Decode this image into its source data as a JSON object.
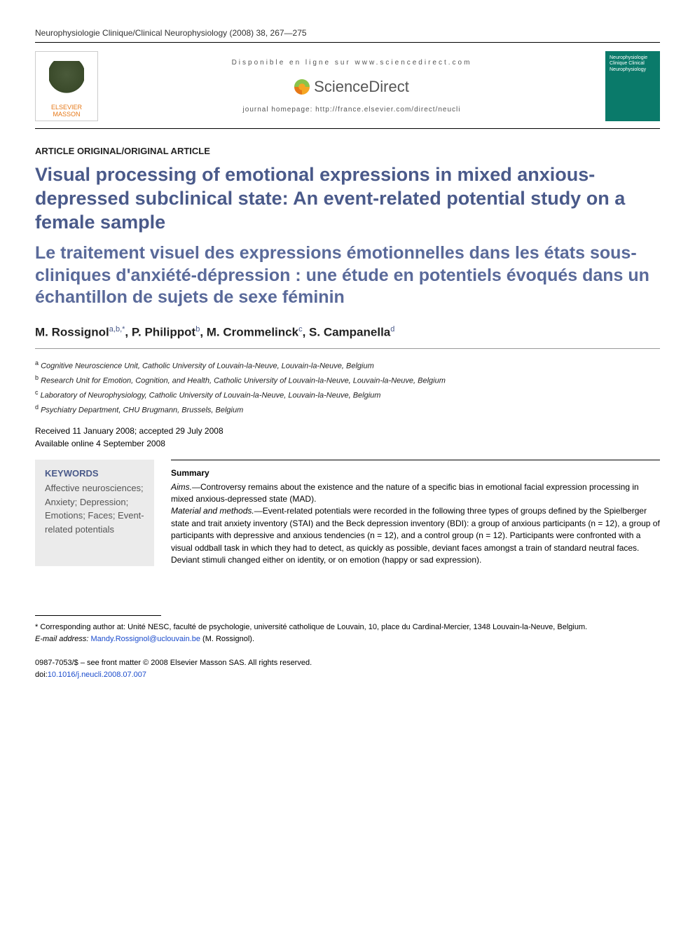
{
  "running_head": "Neurophysiologie Clinique/Clinical Neurophysiology (2008) 38, 267—275",
  "header": {
    "publisher": "ELSEVIER MASSON",
    "available_text": "Disponible en ligne sur www.sciencedirect.com",
    "sd_name": "ScienceDirect",
    "homepage": "journal homepage: http://france.elsevier.com/direct/neucli",
    "cover_lines": "Neurophysiologie Clinique Clinical Neurophysiology"
  },
  "article_type": "ARTICLE ORIGINAL/ORIGINAL ARTICLE",
  "title_en": "Visual processing of emotional expressions in mixed anxious-depressed subclinical state: An event-related potential study on a female sample",
  "title_fr": "Le traitement visuel des expressions émotionnelles dans les états sous-cliniques d'anxiété-dépression : une étude en potentiels évoqués dans un échantillon de sujets de sexe féminin",
  "authors": {
    "a1_name": "M. Rossignol",
    "a1_sup": "a,b,*",
    "a2_name": "P. Philippot",
    "a2_sup": "b",
    "a3_name": "M. Crommelinck",
    "a3_sup": "c",
    "a4_name": "S. Campanella",
    "a4_sup": "d"
  },
  "affiliations": {
    "a": "Cognitive Neuroscience Unit, Catholic University of Louvain-la-Neuve, Louvain-la-Neuve, Belgium",
    "b": "Research Unit for Emotion, Cognition, and Health, Catholic University of Louvain-la-Neuve, Louvain-la-Neuve, Belgium",
    "c": "Laboratory of Neurophysiology, Catholic University of Louvain-la-Neuve, Louvain-la-Neuve, Belgium",
    "d": "Psychiatry Department, CHU Brugmann, Brussels, Belgium"
  },
  "dates": {
    "received_accepted": "Received 11 January 2008; accepted 29 July 2008",
    "online": "Available online 4 September 2008"
  },
  "keywords": {
    "heading": "KEYWORDS",
    "list": "Affective neurosciences; Anxiety; Depression; Emotions; Faces; Event-related potentials"
  },
  "summary": {
    "heading": "Summary",
    "aims_label": "Aims.—",
    "aims_text": "Controversy remains about the existence and the nature of a specific bias in emotional facial expression processing in mixed anxious-depressed state (MAD).",
    "methods_label": "Material and methods.—",
    "methods_text": "Event-related potentials were recorded in the following three types of groups defined by the Spielberger state and trait anxiety inventory (STAI) and the Beck depression inventory (BDI): a group of anxious participants (n = 12), a group of participants with depressive and anxious tendencies (n = 12), and a control group (n = 12). Participants were confronted with a visual oddball task in which they had to detect, as quickly as possible, deviant faces amongst a train of standard neutral faces. Deviant stimuli changed either on identity, or on emotion (happy or sad expression)."
  },
  "footnotes": {
    "corr_label": "* Corresponding author at: ",
    "corr_text": "Unité NESC, faculté de psychologie, université catholique de Louvain, 10, place du Cardinal-Mercier, 1348 Louvain-la-Neuve, Belgium.",
    "email_label": "E-mail address: ",
    "email": "Mandy.Rossignol@uclouvain.be",
    "email_author": " (M. Rossignol)."
  },
  "copyright": {
    "line1": "0987-7053/$ – see front matter © 2008 Elsevier Masson SAS. All rights reserved.",
    "doi_label": "doi:",
    "doi": "10.1016/j.neucli.2008.07.007"
  },
  "colors": {
    "title": "#4a5a8a",
    "link": "#1a4bcc",
    "kw_bg": "#ebebeb",
    "publisher": "#e67817",
    "cover": "#0a7a6a"
  }
}
